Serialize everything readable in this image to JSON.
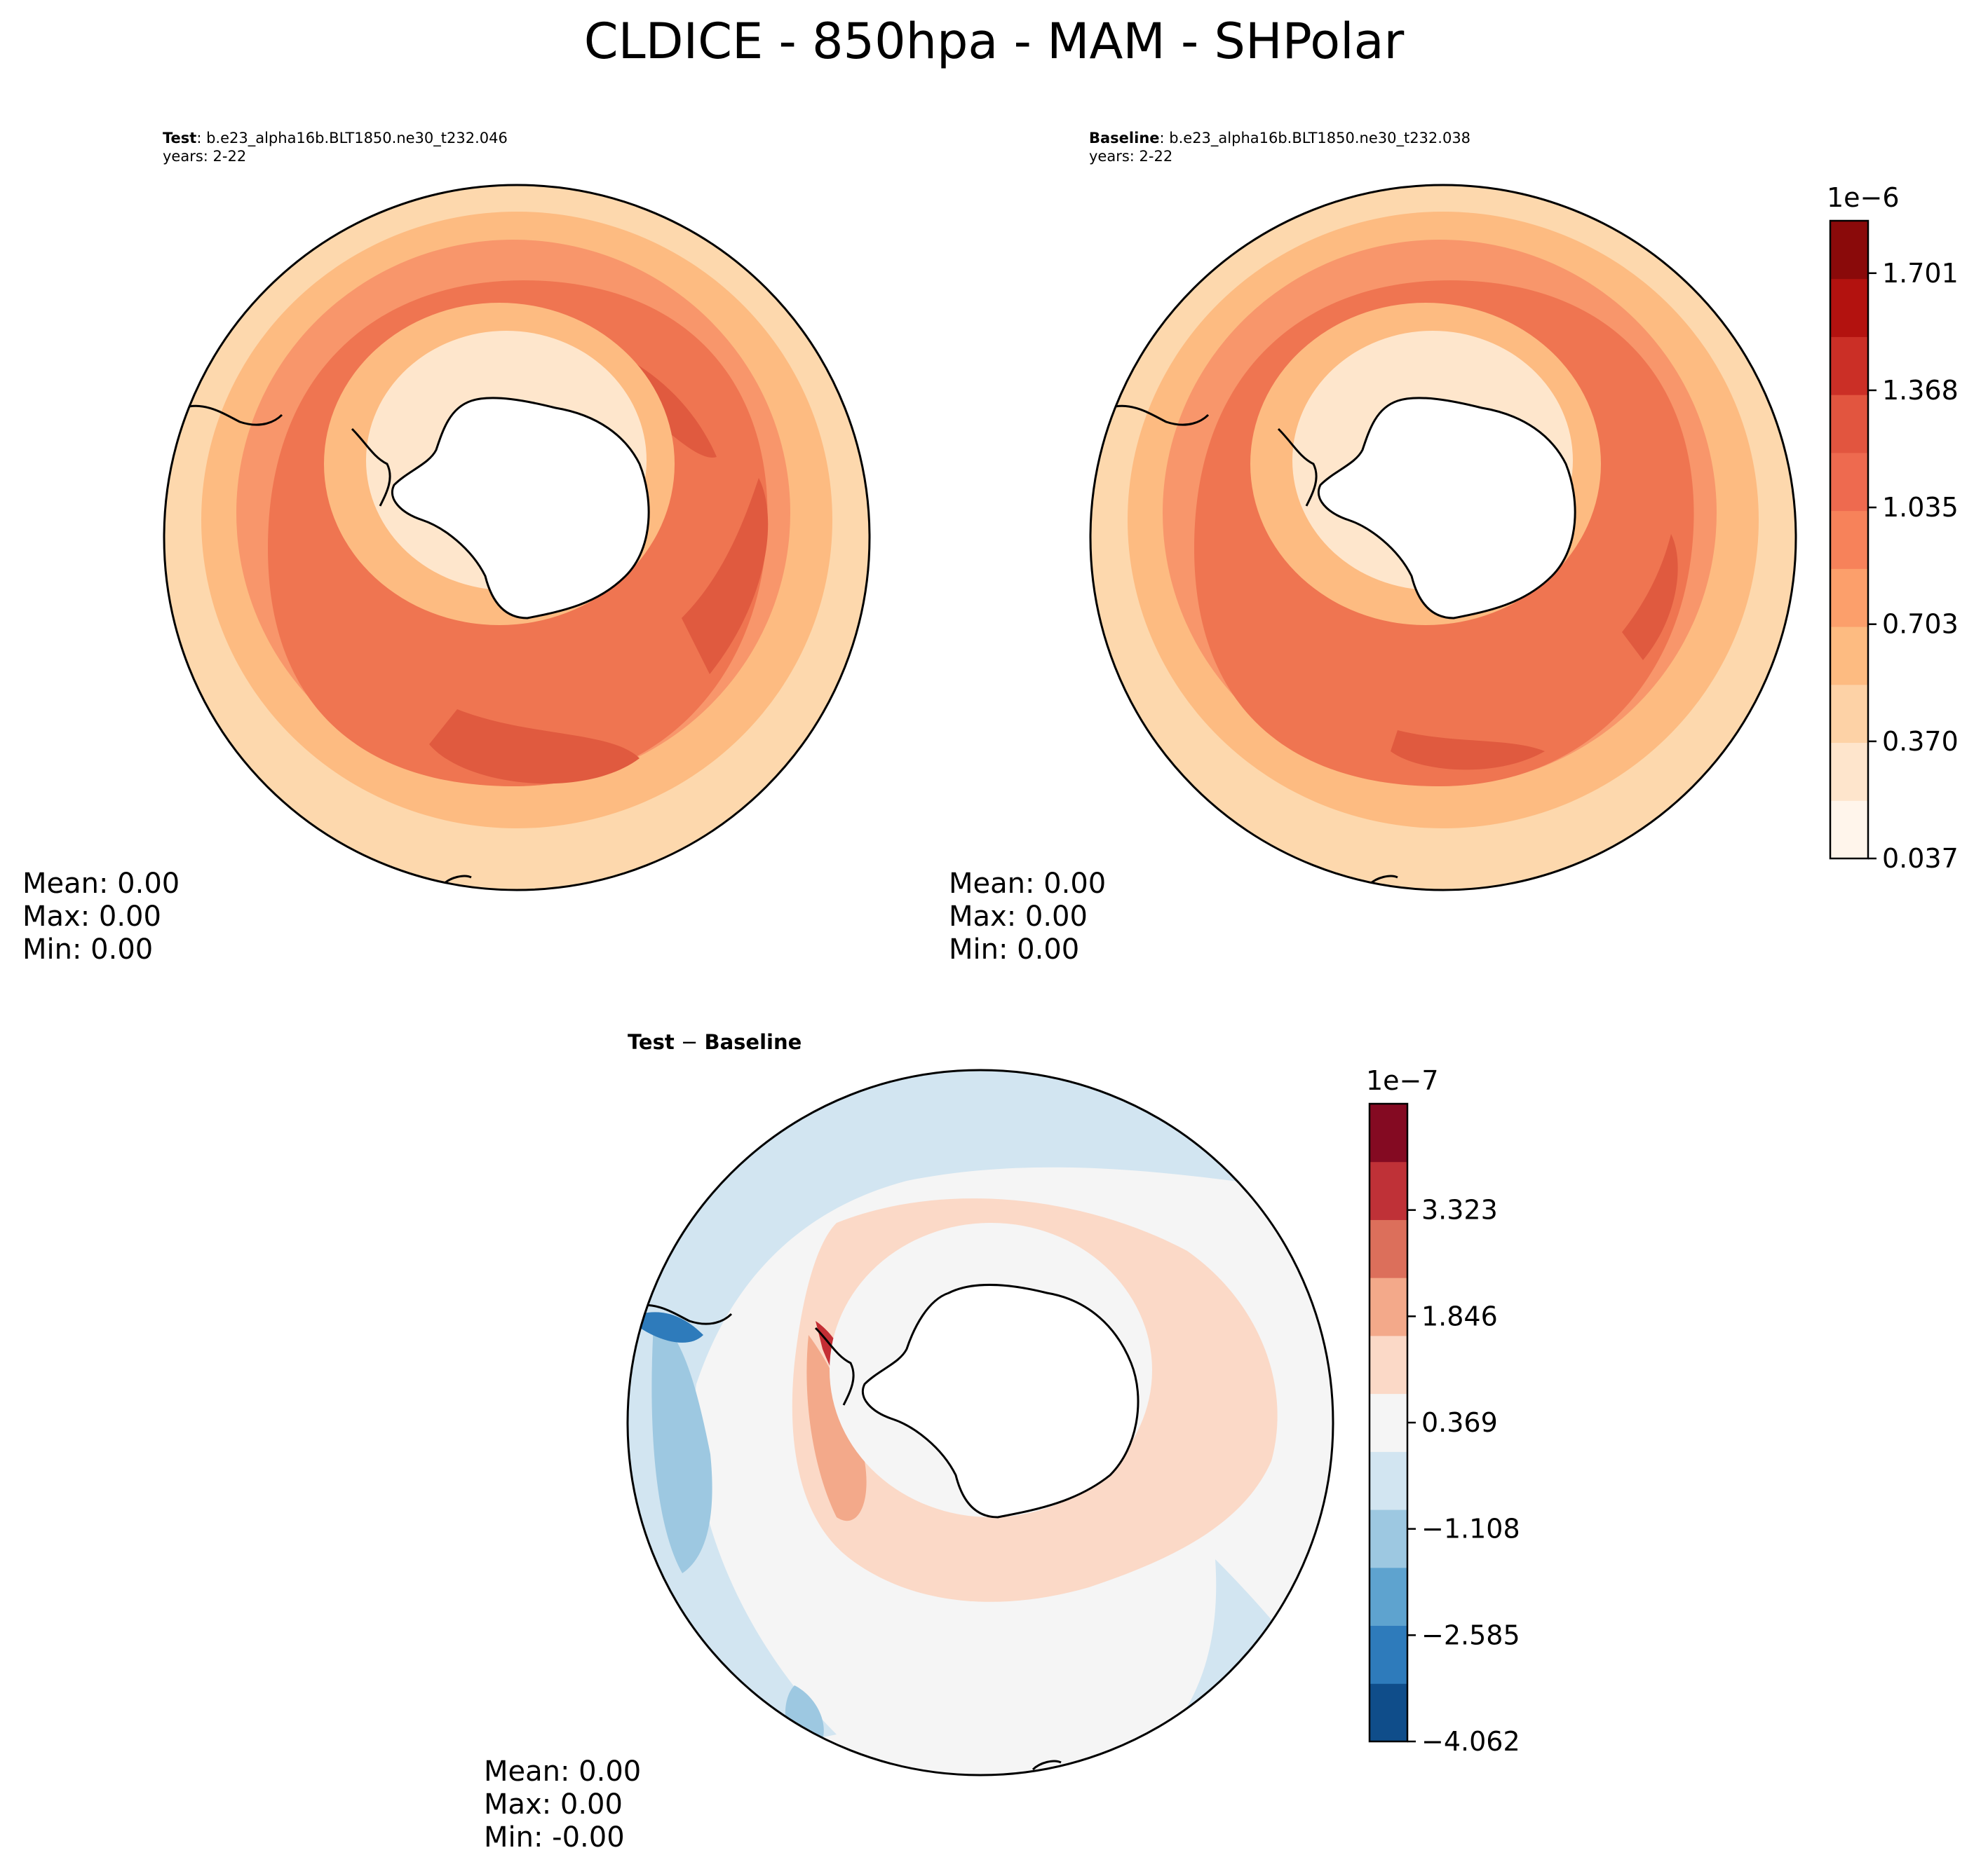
{
  "figure": {
    "title": "CLDICE - 850hpa - MAM - SHPolar"
  },
  "panels": {
    "test": {
      "label": "Test",
      "case": ": b.e23_alpha16b.BLT1850.ne30_t232.046",
      "years": "years: 2-22",
      "stats": {
        "mean": "Mean:  0.00",
        "max": "Max:  0.00",
        "min": "Min:  0.00"
      }
    },
    "baseline": {
      "label": "Baseline",
      "case": ": b.e23_alpha16b.BLT1850.ne30_t232.038",
      "years": "years: 2-22",
      "stats": {
        "mean": "Mean:  0.00",
        "max": "Max:  0.00",
        "min": "Min:  0.00"
      }
    },
    "diff": {
      "label_a": "Test",
      "label_sep": " − ",
      "label_b": "Baseline",
      "stats": {
        "mean": "Mean:  0.00",
        "max": "Max:  0.00",
        "min": "Min: -0.00"
      }
    }
  },
  "chart_data": [
    {
      "type": "heatmap",
      "projection": "south-polar-stereographic",
      "title": "Test : b.e23_alpha16b.BLT1850.ne30_t232.046",
      "subtitle": "years: 2-22",
      "description": "CLDICE at 850 hPa, MAM, filled contours around Antarctica",
      "colormap": "Reds",
      "shared_colorbar": "colorbar_main"
    },
    {
      "type": "heatmap",
      "projection": "south-polar-stereographic",
      "title": "Baseline : b.e23_alpha16b.BLT1850.ne30_t232.038",
      "subtitle": "years: 2-22",
      "colormap": "Reds",
      "shared_colorbar": "colorbar_main"
    },
    {
      "type": "heatmap",
      "projection": "south-polar-stereographic",
      "title": "Test − Baseline",
      "colormap": "RdBu_r",
      "colorbar": "colorbar_diff"
    }
  ],
  "colorbar_main": {
    "exponent_label": "1e−6",
    "ticks": [
      "0.037",
      "0.370",
      "0.703",
      "1.035",
      "1.368",
      "1.701"
    ],
    "range": [
      0.037,
      1.85
    ],
    "levels": 11,
    "colors": [
      "#fff5eb",
      "#fee5cc",
      "#fdd2a6",
      "#fdbb81",
      "#fc9f6b",
      "#f7825a",
      "#ee6a4f",
      "#e2553f",
      "#cb2f26",
      "#b3120f",
      "#8a0a0a"
    ]
  },
  "colorbar_diff": {
    "exponent_label": "1e−7",
    "ticks": [
      "−4.062",
      "−2.585",
      "−1.108",
      "0.369",
      "1.846",
      "3.323"
    ],
    "range": [
      -4.062,
      4.8
    ],
    "levels": 11,
    "colors": [
      "#0f4d8a",
      "#2e7bbb",
      "#5ea3cf",
      "#9dc8e1",
      "#d2e5f1",
      "#f5f5f5",
      "#fbd9c7",
      "#f3a98a",
      "#dc6f5b",
      "#bf3137",
      "#840a22"
    ]
  },
  "colors": {
    "reds_ocean_outer": "#fdd8ad",
    "reds_band_light": "#fdbb81",
    "reds_band_mid": "#f8966b",
    "reds_band_strong": "#ef7551",
    "reds_band_peak": "#e05a3f",
    "reds_inner": "#fee6cc",
    "diff_neutral": "#f5f5f5",
    "diff_neg": "#d2e5f1",
    "diff_neg2": "#9dc8e1",
    "diff_pos": "#fbd9c7",
    "diff_pos2": "#f3a98a",
    "diff_pos3": "#c42e34",
    "diff_neg3": "#2e7bbb"
  }
}
